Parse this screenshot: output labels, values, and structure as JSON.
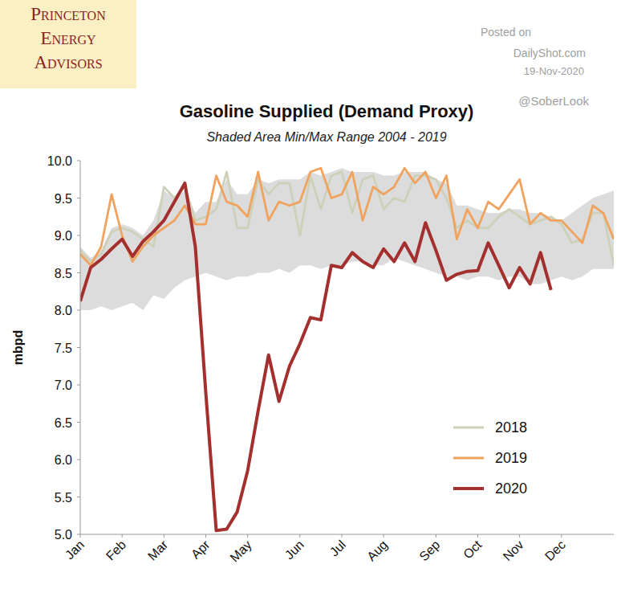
{
  "chart_data": {
    "type": "line",
    "title": "Gasoline Supplied (Demand Proxy)",
    "subtitle": "Shaded Area Min/Max Range 2004 - 2019",
    "y_label": "mbpd",
    "logo": [
      "Princeton",
      "Energy",
      "Advisors"
    ],
    "annotations": [
      "Posted on",
      "DailyShot.com",
      "19-Nov-2020",
      "@SoberLook"
    ],
    "categories": [
      "Jan",
      null,
      null,
      null,
      "Feb",
      null,
      null,
      null,
      "Mar",
      null,
      null,
      null,
      "Apr",
      null,
      null,
      null,
      "May",
      null,
      null,
      null,
      null,
      "Jun",
      null,
      null,
      null,
      "Jul",
      null,
      null,
      null,
      "Aug",
      null,
      null,
      null,
      null,
      "Sep",
      null,
      null,
      null,
      "Oct",
      null,
      null,
      null,
      "Nov",
      null,
      null,
      null,
      "Dec",
      null,
      null,
      null,
      null,
      null
    ],
    "band": {
      "color": "#dcdcdc",
      "min": [
        8.0,
        8.0,
        8.05,
        8.0,
        8.05,
        8.1,
        8.0,
        8.2,
        8.15,
        8.3,
        8.4,
        8.45,
        8.5,
        8.45,
        8.4,
        8.45,
        8.45,
        8.5,
        8.5,
        8.55,
        8.5,
        8.6,
        8.6,
        8.55,
        8.6,
        8.6,
        8.65,
        8.65,
        8.6,
        8.6,
        8.7,
        8.65,
        8.6,
        8.55,
        8.5,
        8.45,
        8.45,
        8.4,
        8.45,
        8.45,
        8.4,
        8.45,
        8.45,
        8.35,
        8.35,
        8.4,
        8.45,
        8.4,
        8.45,
        8.55,
        8.55,
        8.55
      ],
      "max": [
        8.85,
        8.7,
        8.8,
        9.1,
        9.15,
        9.1,
        9.0,
        9.2,
        9.6,
        9.5,
        9.6,
        9.3,
        9.45,
        9.45,
        9.75,
        9.55,
        9.55,
        9.75,
        9.7,
        9.75,
        9.75,
        9.75,
        9.85,
        9.8,
        9.85,
        9.9,
        9.85,
        9.85,
        9.85,
        9.8,
        9.8,
        9.85,
        9.85,
        9.85,
        9.75,
        9.7,
        9.4,
        9.4,
        9.35,
        9.3,
        9.3,
        9.35,
        9.35,
        9.3,
        9.3,
        9.25,
        9.2,
        9.3,
        9.4,
        9.5,
        9.55,
        9.6
      ]
    },
    "series": [
      {
        "name": "2018",
        "color": "#cdd1b9",
        "values": [
          8.8,
          8.65,
          8.75,
          9.05,
          9.1,
          9.05,
          8.95,
          8.85,
          9.65,
          9.5,
          9.65,
          9.2,
          9.25,
          9.35,
          9.85,
          9.1,
          9.1,
          9.75,
          9.55,
          9.7,
          9.7,
          9.0,
          9.8,
          9.35,
          9.8,
          9.85,
          9.3,
          9.75,
          9.8,
          9.35,
          9.5,
          9.45,
          9.8,
          9.8,
          9.75,
          9.5,
          9.1,
          9.2,
          9.1,
          9.1,
          9.25,
          9.35,
          9.25,
          9.15,
          9.2,
          9.25,
          9.15,
          8.9,
          8.95,
          9.3,
          9.3,
          8.6
        ]
      },
      {
        "name": "2019",
        "color": "#f0a35e",
        "values": [
          8.75,
          8.6,
          8.85,
          9.55,
          9.0,
          8.65,
          8.85,
          9.0,
          9.1,
          9.2,
          9.4,
          9.15,
          9.15,
          9.8,
          9.45,
          9.4,
          9.25,
          9.85,
          9.2,
          9.45,
          9.4,
          9.45,
          9.85,
          9.9,
          9.5,
          9.55,
          9.85,
          9.2,
          9.65,
          9.55,
          9.65,
          9.9,
          9.7,
          9.85,
          9.5,
          9.8,
          8.95,
          9.35,
          9.1,
          9.45,
          9.35,
          9.55,
          9.75,
          9.15,
          9.3,
          9.2,
          9.2,
          9.05,
          8.9,
          9.4,
          9.3,
          8.95
        ]
      },
      {
        "name": "2020",
        "color": "#a3302e",
        "values": [
          8.12,
          8.57,
          8.68,
          8.82,
          8.95,
          8.72,
          8.92,
          9.05,
          9.2,
          9.45,
          9.7,
          8.85,
          6.9,
          5.05,
          5.07,
          5.3,
          5.85,
          6.65,
          7.4,
          6.78,
          7.25,
          7.55,
          7.9,
          7.87,
          8.6,
          8.57,
          8.77,
          8.65,
          8.57,
          8.82,
          8.65,
          8.9,
          8.65,
          9.17,
          8.8,
          8.4,
          8.48,
          8.52,
          8.53,
          8.9,
          8.6,
          8.3,
          8.57,
          8.35,
          8.77,
          8.27,
          null,
          null,
          null,
          null,
          null,
          null
        ]
      }
    ],
    "ylim": [
      5,
      10
    ],
    "yticks": [
      {
        "value": 5,
        "label": "5.0"
      },
      {
        "value": 5.5,
        "label": "5.5"
      },
      {
        "value": 6,
        "label": "6.0"
      },
      {
        "value": 6.5,
        "label": "6.5"
      },
      {
        "value": 7,
        "label": "7.0"
      },
      {
        "value": 7.5,
        "label": "7.5"
      },
      {
        "value": 8,
        "label": "8.0"
      },
      {
        "value": 8.5,
        "label": "8.5"
      },
      {
        "value": 9,
        "label": "9.0"
      },
      {
        "value": 9.5,
        "label": "9.5"
      },
      {
        "value": 10,
        "label": "10.0"
      }
    ],
    "grid": false,
    "legend": "lower-right"
  }
}
